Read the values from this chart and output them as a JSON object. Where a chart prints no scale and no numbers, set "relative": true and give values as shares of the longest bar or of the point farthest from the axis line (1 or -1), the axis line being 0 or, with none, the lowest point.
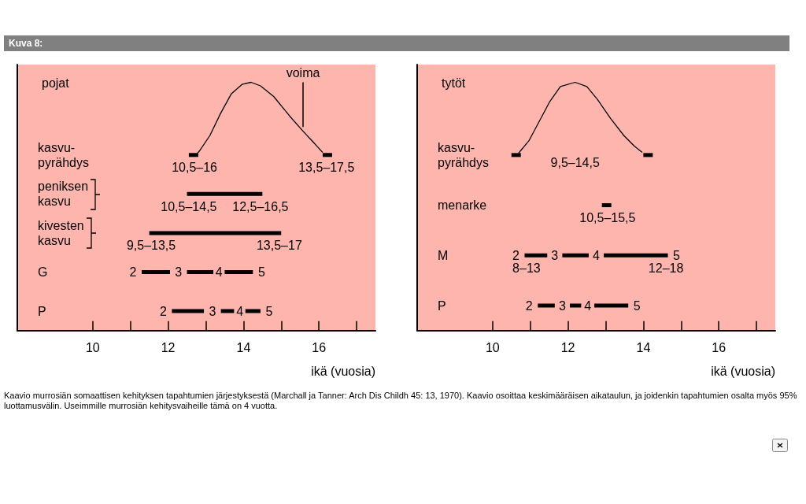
{
  "chart_data": [
    {
      "type": "other",
      "title": "Kuva 8:",
      "annotations": [
        "Kaavio murrosiän somaattisen kehityksen tapahtumien järjestyksestä (Marchall ja Tanner: Arch Dis Childh 45: 13, 1970). Kaavio osoittaa keskimääräisen aikataulun, ja joidenkin tapahtumien osalta myös 95% luottamusvälin. Useimmille murrosiän kehitysvaiheille tämä on 4 vuotta."
      ]
    },
    {
      "type": "line",
      "relative": true,
      "title": "pojat",
      "xlim": [
        8,
        17.5
      ],
      "series": [
        {
          "color": "#000000",
          "x": [
            12.78,
            12.83,
            13.11,
            13.39,
            13.68,
            13.96,
            14.2,
            14.45,
            14.8,
            15.23,
            15.58,
            15.86,
            16.1
          ],
          "values": [
            0,
            0.03,
            0.25,
            0.56,
            0.84,
            0.97,
            1,
            0.95,
            0.8,
            0.52,
            0.31,
            0.15,
            0.01
          ]
        }
      ],
      "annotations": [
        {
          "text": "voima",
          "x": 15.58,
          "y": 0.31
        }
      ]
    },
    {
      "type": "bar",
      "orientation": "horizontal",
      "xlabel": "ikä (vuosia)",
      "categories": [
        "kasvu-\npyrähdys",
        "peniksen\nkasvu",
        "kivesten\nkasvu",
        "G",
        "P"
      ],
      "xlim": [
        8,
        17.5
      ],
      "xticks": [
        10,
        {
          "value": 11,
          "label": null
        },
        12,
        {
          "value": 13,
          "label": null
        },
        14,
        {
          "value": 15,
          "label": null
        },
        16,
        {
          "value": 17,
          "label": null
        }
      ],
      "series": [
        {
          "color": "#000000",
          "base": [
            12.55,
            12.5,
            11.5,
            11.3,
            12.1
          ],
          "values": [
            0.25,
            2,
            3.5,
            0.75,
            0.85
          ]
        },
        {
          "color": "#000000",
          "base": [
            16.1,
            null,
            null,
            12.5,
            13.4
          ],
          "values": [
            0.25,
            null,
            null,
            0.7,
            0.35
          ]
        },
        {
          "color": "#000000",
          "base": [
            null,
            null,
            null,
            13.5,
            14.05
          ],
          "values": [
            null,
            null,
            null,
            0.75,
            0.4
          ]
        }
      ],
      "annotations": [
        {
          "text": "10,5–16",
          "x": 12.7,
          "y": "kasvu-\npyrähdys"
        },
        {
          "text": "13,5–17,5",
          "x": 16.2,
          "y": "kasvu-\npyrähdys"
        },
        {
          "text": "10,5–14,5",
          "x": 12.55,
          "y": "peniksen\nkasvu"
        },
        {
          "text": "12,5–16,5",
          "x": 14.45,
          "y": "peniksen\nkasvu"
        },
        {
          "text": "9,5–13,5",
          "x": 11.55,
          "y": "kivesten\nkasvu"
        },
        {
          "text": "13,5–17",
          "x": 14.95,
          "y": "kivesten\nkasvu"
        },
        {
          "text": "2",
          "x": 11.3,
          "y": "G"
        },
        {
          "text": "3",
          "x": 12.5,
          "y": "G"
        },
        {
          "text": "4",
          "x": 13.5,
          "y": "G"
        },
        {
          "text": "5",
          "x": 14.25,
          "y": "G"
        },
        {
          "text": "2",
          "x": 12.1,
          "y": "P"
        },
        {
          "text": "3",
          "x": 13.4,
          "y": "P"
        },
        {
          "text": "4",
          "x": 14.05,
          "y": "P"
        },
        {
          "text": "5",
          "x": 14.45,
          "y": "P"
        }
      ]
    },
    {
      "type": "line",
      "relative": true,
      "title": "tytöt",
      "xlim": [
        8,
        17.5
      ],
      "series": [
        {
          "color": "#000000",
          "x": [
            10.69,
            10.97,
            11.24,
            11.52,
            11.8,
            12.19,
            12.5,
            12.78,
            13.13,
            13.48,
            13.76,
            13.97
          ],
          "values": [
            0,
            0.18,
            0.45,
            0.73,
            0.94,
            1,
            0.94,
            0.76,
            0.49,
            0.25,
            0.1,
            0.01
          ]
        }
      ],
      "annotations": [
        "9,5–14,5"
      ]
    },
    {
      "type": "bar",
      "orientation": "horizontal",
      "xlabel": "ikä (vuosia)",
      "categories": [
        "kasvu-\npyrähdys",
        "menarke",
        "M",
        "P"
      ],
      "xlim": [
        8,
        17.5
      ],
      "xticks": [
        10,
        {
          "value": 11,
          "label": null
        },
        12,
        {
          "value": 13,
          "label": null
        },
        14,
        {
          "value": 15,
          "label": null
        },
        16,
        {
          "value": 17,
          "label": null
        }
      ],
      "series": [
        {
          "color": "#000000",
          "base": [
            10.5,
            12.9,
            10.85,
            11.2
          ],
          "values": [
            0.25,
            0.25,
            0.6,
            0.45
          ]
        },
        {
          "color": "#000000",
          "base": [
            14.0,
            null,
            11.85,
            12.05
          ],
          "values": [
            0.25,
            null,
            0.7,
            0.3
          ]
        },
        {
          "color": "#000000",
          "base": [
            null,
            null,
            12.95,
            12.7
          ],
          "values": [
            null,
            null,
            1.7,
            0.9
          ]
        }
      ],
      "annotations": [
        {
          "text": "10,5–15,5",
          "x": 13.05,
          "y": "menarke"
        },
        {
          "text": "8–13",
          "x": 10.9,
          "y": "M"
        },
        {
          "text": "12–18",
          "x": 14.6,
          "y": "M"
        },
        {
          "text": "2",
          "x": 10.85,
          "y": "M"
        },
        {
          "text": "3",
          "x": 11.85,
          "y": "M"
        },
        {
          "text": "4",
          "x": 12.95,
          "y": "M"
        },
        {
          "text": "5",
          "x": 14.65,
          "y": "M"
        },
        {
          "text": "2",
          "x": 11.2,
          "y": "P"
        },
        {
          "text": "3",
          "x": 12.05,
          "y": "P"
        },
        {
          "text": "4",
          "x": 12.7,
          "y": "P"
        },
        {
          "text": "5",
          "x": 13.6,
          "y": "P"
        }
      ]
    }
  ]
}
